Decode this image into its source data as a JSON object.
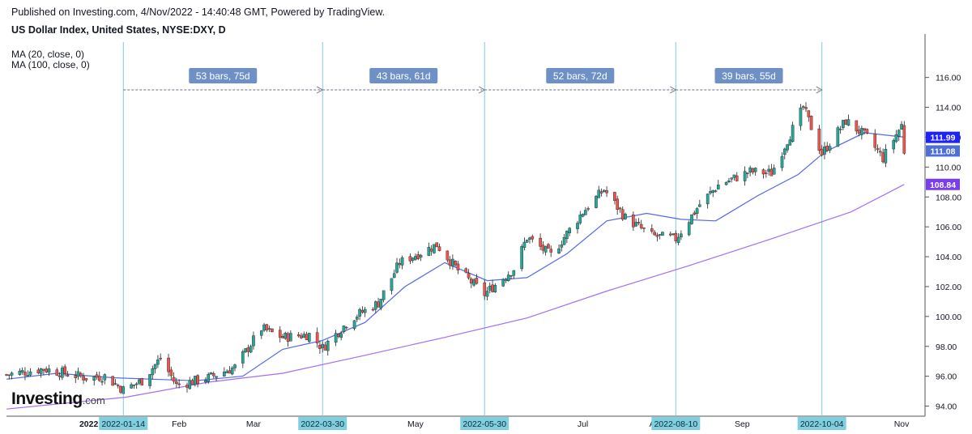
{
  "header": {
    "published": "Published on Investing.com, 4/Nov/2022 - 14:40:48 GMT, Powered by TradingView.",
    "symbol": "US Dollar Index, United States, NYSE:DXY, D"
  },
  "indicators": [
    "MA (20, close, 0)",
    "MA (100, close, 0)"
  ],
  "logo": {
    "main": "Investing",
    "suffix": ".com"
  },
  "colors": {
    "up": "#26a69a",
    "down": "#ef5350",
    "ma20": "#5468e8",
    "ma100": "#a46ef5",
    "vline": "#7ecbe0",
    "measure_bg": "#6f8fc7",
    "tag_blue": "#1e22ff",
    "tag_mid": "#4f6fd8",
    "tag_violet": "#7a3cf0",
    "date_tag": "#7fcfe0"
  },
  "chart_data": {
    "type": "candlestick",
    "y_range": [
      93.0,
      117.0
    ],
    "y_ticks": [
      "94.00",
      "96.00",
      "98.00",
      "100.00",
      "102.00",
      "104.00",
      "106.00",
      "108.00",
      "110.00",
      "112.00",
      "114.00",
      "116.00"
    ],
    "x_labels": [
      "2022",
      "Feb",
      "Mar",
      "May",
      "Jul",
      "Au",
      "Sep",
      "Nov"
    ],
    "series": [
      {
        "name": "MA (20, close, 0)",
        "points": [
          [
            "2021-12-01",
            95.8
          ],
          [
            "2021-12-20",
            96.2
          ],
          [
            "2022-01-10",
            95.9
          ],
          [
            "2022-01-25",
            95.8
          ],
          [
            "2022-02-10",
            95.7
          ],
          [
            "2022-02-28",
            96.0
          ],
          [
            "2022-03-15",
            97.8
          ],
          [
            "2022-03-30",
            98.4
          ],
          [
            "2022-04-15",
            99.6
          ],
          [
            "2022-04-30",
            102.0
          ],
          [
            "2022-05-15",
            103.6
          ],
          [
            "2022-05-31",
            102.4
          ],
          [
            "2022-06-15",
            102.6
          ],
          [
            "2022-06-30",
            104.2
          ],
          [
            "2022-07-15",
            106.4
          ],
          [
            "2022-07-30",
            106.9
          ],
          [
            "2022-08-12",
            106.5
          ],
          [
            "2022-08-25",
            106.4
          ],
          [
            "2022-09-10",
            108.1
          ],
          [
            "2022-09-25",
            109.5
          ],
          [
            "2022-10-05",
            111.0
          ],
          [
            "2022-10-20",
            112.3
          ],
          [
            "2022-11-04",
            112.0
          ]
        ]
      },
      {
        "name": "MA (100, close, 0)",
        "points": [
          [
            "2021-12-01",
            93.8
          ],
          [
            "2022-01-15",
            94.6
          ],
          [
            "2022-02-15",
            95.6
          ],
          [
            "2022-03-15",
            96.2
          ],
          [
            "2022-04-15",
            97.4
          ],
          [
            "2022-05-15",
            98.6
          ],
          [
            "2022-06-15",
            99.9
          ],
          [
            "2022-07-15",
            101.7
          ],
          [
            "2022-08-15",
            103.4
          ],
          [
            "2022-09-15",
            105.2
          ],
          [
            "2022-10-15",
            107.0
          ],
          [
            "2022-11-04",
            108.84
          ]
        ]
      }
    ],
    "price_tags": [
      {
        "value": 111.99,
        "label": "111.99"
      },
      {
        "value": 111.08,
        "label": "111.08"
      },
      {
        "value": 108.84,
        "label": "108.84"
      }
    ],
    "vertical_markers": [
      {
        "date": "2022-01-14",
        "label": "2022-01-14"
      },
      {
        "date": "2022-03-30",
        "label": "2022-03-30"
      },
      {
        "date": "2022-05-30",
        "label": "2022-05-30"
      },
      {
        "date": "2022-08-10",
        "label": "2022-08-10"
      },
      {
        "date": "2022-10-04",
        "label": "2022-10-04"
      }
    ],
    "measurements": [
      {
        "from": "2022-01-14",
        "to": "2022-03-30",
        "label": "53 bars, 75d"
      },
      {
        "from": "2022-03-30",
        "to": "2022-05-30",
        "label": "43 bars, 61d"
      },
      {
        "from": "2022-05-30",
        "to": "2022-08-10",
        "label": "52 bars, 72d"
      },
      {
        "from": "2022-08-10",
        "to": "2022-10-04",
        "label": "39 bars, 55d"
      }
    ],
    "close_anchors": [
      [
        "2021-12-01",
        96.1
      ],
      [
        "2021-12-15",
        96.5
      ],
      [
        "2021-12-31",
        95.9
      ],
      [
        "2022-01-07",
        96.0
      ],
      [
        "2022-01-14",
        95.1
      ],
      [
        "2022-01-21",
        95.7
      ],
      [
        "2022-01-28",
        97.2
      ],
      [
        "2022-02-03",
        95.4
      ],
      [
        "2022-02-15",
        95.9
      ],
      [
        "2022-02-25",
        96.6
      ],
      [
        "2022-03-07",
        99.2
      ],
      [
        "2022-03-15",
        98.6
      ],
      [
        "2022-03-25",
        98.8
      ],
      [
        "2022-03-30",
        97.9
      ],
      [
        "2022-04-10",
        99.9
      ],
      [
        "2022-04-20",
        100.9
      ],
      [
        "2022-04-28",
        103.6
      ],
      [
        "2022-05-12",
        104.8
      ],
      [
        "2022-05-20",
        103.1
      ],
      [
        "2022-05-30",
        101.5
      ],
      [
        "2022-06-10",
        103.2
      ],
      [
        "2022-06-15",
        105.3
      ],
      [
        "2022-06-24",
        104.1
      ],
      [
        "2022-07-06",
        107.0
      ],
      [
        "2022-07-14",
        108.5
      ],
      [
        "2022-07-22",
        106.6
      ],
      [
        "2022-08-01",
        105.4
      ],
      [
        "2022-08-10",
        105.2
      ],
      [
        "2022-08-19",
        107.5
      ],
      [
        "2022-08-26",
        108.8
      ],
      [
        "2022-09-07",
        109.7
      ],
      [
        "2022-09-15",
        109.6
      ],
      [
        "2022-09-27",
        114.0
      ],
      [
        "2022-10-04",
        110.9
      ],
      [
        "2022-10-13",
        113.1
      ],
      [
        "2022-10-21",
        112.0
      ],
      [
        "2022-10-27",
        110.6
      ],
      [
        "2022-11-03",
        112.8
      ],
      [
        "2022-11-04",
        111.08
      ]
    ]
  }
}
